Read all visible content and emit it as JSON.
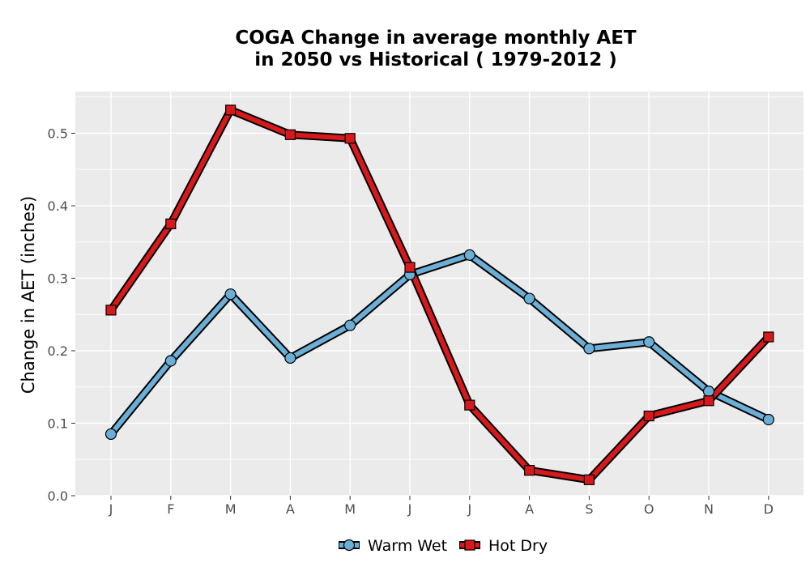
{
  "chart_data": {
    "type": "line",
    "title_line1": "COGA  Change in average monthly AET",
    "title_line2": "in 2050 vs Historical ( 1979-2012 )",
    "xlabel": "",
    "ylabel": "Change in AET (inches)",
    "categories": [
      "J",
      "F",
      "M",
      "A",
      "M",
      "J",
      "J",
      "A",
      "S",
      "O",
      "N",
      "D"
    ],
    "ylim": [
      0,
      0.555
    ],
    "yticks": [
      0.0,
      0.1,
      0.2,
      0.3,
      0.4,
      0.5
    ],
    "ytick_labels": [
      "0.0",
      "0.1",
      "0.2",
      "0.3",
      "0.4",
      "0.5"
    ],
    "grid": true,
    "legend_position": "bottom",
    "series": [
      {
        "name": "Warm Wet",
        "marker": "circle",
        "color": "#6baed6",
        "values": [
          0.085,
          0.186,
          0.278,
          0.19,
          0.235,
          0.305,
          0.332,
          0.272,
          0.203,
          0.212,
          0.144,
          0.105
        ]
      },
      {
        "name": "Hot Dry",
        "marker": "square",
        "color": "#d7191c",
        "values": [
          0.256,
          0.375,
          0.532,
          0.498,
          0.493,
          0.315,
          0.125,
          0.035,
          0.022,
          0.11,
          0.131,
          0.219
        ]
      }
    ]
  },
  "colors": {
    "panel_background": "#ebebeb",
    "grid": "#ffffff",
    "outline": "#000000"
  }
}
